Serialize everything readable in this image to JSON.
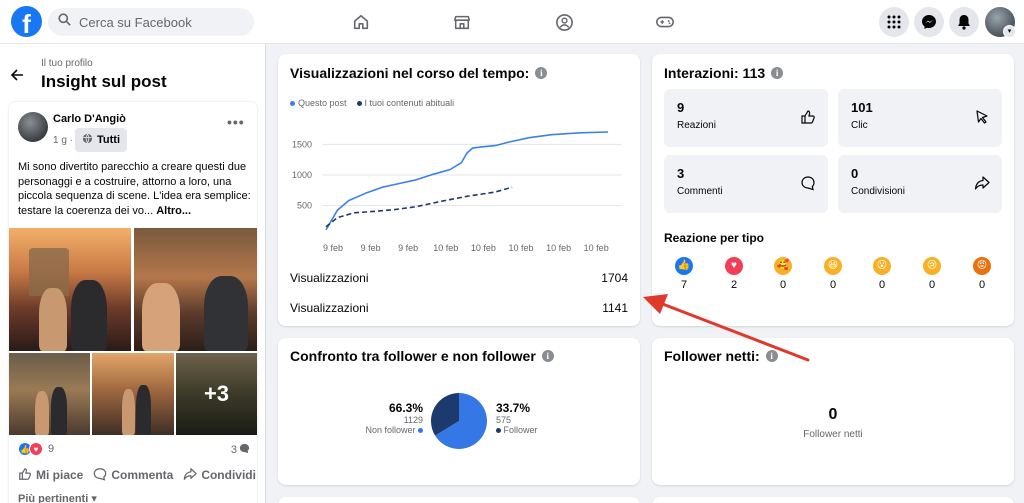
{
  "topbar": {
    "logo": "f",
    "search_placeholder": "Cerca su Facebook",
    "icons": [
      "home-icon",
      "marketplace-icon",
      "groups-icon",
      "gaming-icon",
      "menu-grid-icon",
      "messenger-icon",
      "notifications-icon"
    ]
  },
  "sidebar": {
    "subtitle": "Il tuo profilo",
    "title": "Insight sul post"
  },
  "post": {
    "author": "Carlo D'Angiò",
    "time": "1 g ·",
    "audience": "Tutti",
    "text": "Mi sono divertito parecchio a creare questi due personaggi e a costruire, attorno a loro, una piccola sequenza di scene. L'idea era semplice: testare la coerenza dei vo...",
    "more_link": "Altro...",
    "extra_photos": "+3",
    "reactions_count": "9",
    "comments_count": "3",
    "actions": {
      "like": "Mi piace",
      "comment": "Commenta",
      "share": "Condividi"
    },
    "sort": "Più pertinenti"
  },
  "views_card": {
    "title": "Visualizzazioni nel corso del tempo:",
    "legend_this": "Questo post",
    "legend_usual": "I tuoi contenuti abituali",
    "rows": [
      {
        "label": "Visualizzazioni",
        "value": "1704"
      },
      {
        "label": "Visualizzazioni",
        "value": "1141"
      }
    ]
  },
  "chart_data": {
    "type": "line",
    "title": "Visualizzazioni nel corso del tempo:",
    "xlabel": "",
    "ylabel": "",
    "x_ticks": [
      "9 feb",
      "9 feb",
      "9 feb",
      "10 feb",
      "10 feb",
      "10 feb",
      "10 feb",
      "10 feb"
    ],
    "y_ticks": [
      500,
      1000,
      1500
    ],
    "ylim": [
      0,
      1900
    ],
    "legend": "top-left",
    "series": [
      {
        "name": "Questo post",
        "color": "#3b82e8",
        "style": "solid",
        "x": [
          0,
          0.04,
          0.08,
          0.14,
          0.2,
          0.26,
          0.32,
          0.38,
          0.44,
          0.48,
          0.5,
          0.52,
          0.55,
          0.6,
          0.65,
          0.72,
          0.8,
          0.9,
          1.0
        ],
        "y": [
          100,
          420,
          580,
          700,
          800,
          860,
          920,
          1010,
          1090,
          1200,
          1360,
          1440,
          1460,
          1480,
          1540,
          1610,
          1660,
          1690,
          1704
        ]
      },
      {
        "name": "I tuoi contenuti abituali",
        "color": "#1c3a6e",
        "style": "dashed",
        "x": [
          0,
          0.04,
          0.1,
          0.16,
          0.24,
          0.32,
          0.4,
          0.5,
          0.6,
          0.66
        ],
        "y": [
          150,
          300,
          380,
          400,
          430,
          480,
          560,
          650,
          720,
          800
        ]
      }
    ]
  },
  "interactions_card": {
    "title": "Interazioni: 113",
    "stats": [
      {
        "value": "9",
        "label": "Reazioni"
      },
      {
        "value": "101",
        "label": "Clic"
      },
      {
        "value": "3",
        "label": "Commenti"
      },
      {
        "value": "0",
        "label": "Condivisioni"
      }
    ],
    "reactions_title": "Reazione per tipo",
    "reactions": [
      {
        "name": "like",
        "count": "7",
        "color": "#1877f2",
        "glyph": "👍"
      },
      {
        "name": "love",
        "count": "2",
        "color": "#f33e58",
        "glyph": "♥"
      },
      {
        "name": "care",
        "count": "0",
        "color": "#f7b125",
        "glyph": "🥰"
      },
      {
        "name": "haha",
        "count": "0",
        "color": "#f7b125",
        "glyph": "😆"
      },
      {
        "name": "wow",
        "count": "0",
        "color": "#f7b125",
        "glyph": "😮"
      },
      {
        "name": "sad",
        "count": "0",
        "color": "#f7b125",
        "glyph": "😢"
      },
      {
        "name": "angry",
        "count": "0",
        "color": "#e9710f",
        "glyph": "😡"
      }
    ]
  },
  "followers_card": {
    "title": "Confronto tra follower e non follower",
    "non_followers": {
      "pct": "66.3%",
      "count": "1129",
      "label": "Non follower",
      "color": "#3578e5"
    },
    "followers": {
      "pct": "33.7%",
      "count": "575",
      "label": "Follower",
      "color": "#1c3a6e"
    }
  },
  "net_followers_card": {
    "title": "Follower netti:",
    "value": "0",
    "label": "Follower netti"
  },
  "annotation_color": "#e0392b"
}
